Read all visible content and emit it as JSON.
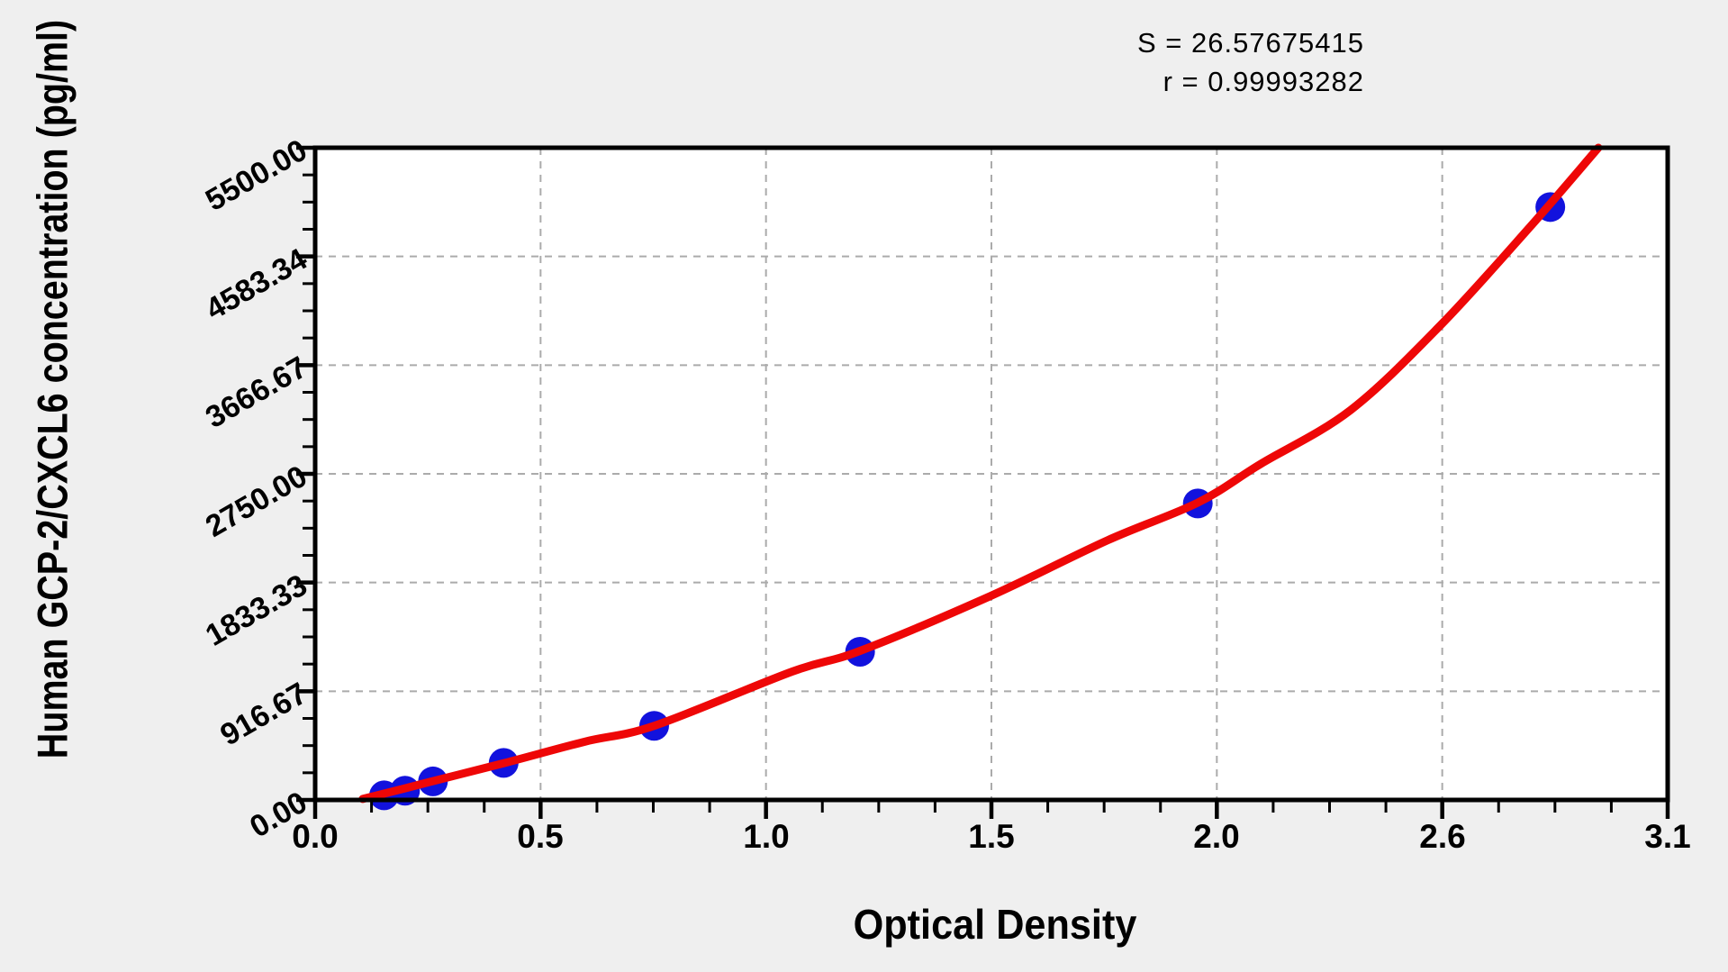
{
  "figure": {
    "background": "#efefef",
    "stats": {
      "s_line": "S = 26.57675415",
      "r_line": "r = 0.99993282"
    }
  },
  "chart_data": {
    "type": "scatter",
    "title": "",
    "xlabel": "Optical Density",
    "ylabel": "Human GCP-2/CXCL6 concentration (pg/ml)",
    "xlim": [
      0,
      3.1
    ],
    "ylim": [
      0,
      5500
    ],
    "x_tick_labels": [
      "0.0",
      "0.5",
      "1.0",
      "1.5",
      "2.0",
      "2.6",
      "3.1"
    ],
    "y_tick_labels": [
      "0.00",
      "916.67",
      "1833.33",
      "2750.00",
      "3666.67",
      "4583.34",
      "5500.00"
    ],
    "major_divisions": 6,
    "minor_ticks_per_interval": 3,
    "grid": "dashed gray lines at interior major ticks, plot framed with solid black box",
    "legend_position": "none",
    "point_color": "#1212dd",
    "curve_color": "#ee0707",
    "grid_color": "#ababab",
    "points": [
      {
        "od": 0.158,
        "conc": 39.06
      },
      {
        "od": 0.206,
        "conc": 78.13
      },
      {
        "od": 0.27,
        "conc": 156.25
      },
      {
        "od": 0.432,
        "conc": 312.5
      },
      {
        "od": 0.777,
        "conc": 625
      },
      {
        "od": 1.249,
        "conc": 1250
      },
      {
        "od": 2.023,
        "conc": 2500
      },
      {
        "od": 2.831,
        "conc": 5000
      }
    ],
    "curve": {
      "name": "fitted-standard-curve",
      "samples": [
        [
          0.109,
          8
        ],
        [
          0.206,
          98
        ],
        [
          0.27,
          159
        ],
        [
          0.433,
          311
        ],
        [
          0.619,
          492
        ],
        [
          0.78,
          629
        ],
        [
          1.094,
          1083
        ],
        [
          1.249,
          1257
        ],
        [
          1.548,
          1720
        ],
        [
          1.816,
          2189
        ],
        [
          2.023,
          2507
        ],
        [
          2.167,
          2833
        ],
        [
          2.373,
          3287
        ],
        [
          2.58,
          4006
        ],
        [
          2.786,
          4839
        ],
        [
          2.941,
          5500
        ]
      ]
    },
    "fit_stats": {
      "S": 26.57675415,
      "r": 0.99993282
    }
  }
}
